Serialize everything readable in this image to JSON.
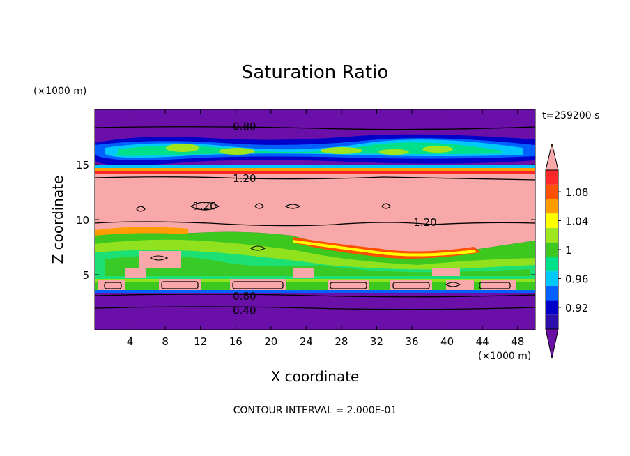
{
  "chart_data": {
    "type": "heatmap",
    "title": "Saturation Ratio",
    "xlabel": "X coordinate",
    "ylabel": "Z coordinate",
    "x_unit": "(×1000 m)",
    "y_unit": "(×1000 m)",
    "time_label": "t=259200 s",
    "footer": "CONTOUR INTERVAL = 2.000E-01",
    "xlim": [
      0,
      50
    ],
    "ylim": [
      0,
      20
    ],
    "x_ticks": [
      4,
      8,
      12,
      16,
      20,
      24,
      28,
      32,
      36,
      40,
      44,
      48
    ],
    "y_ticks": [
      5,
      10,
      15
    ],
    "colorbar": {
      "tick_labels": [
        "0.92",
        "0.96",
        "1",
        "1.04",
        "1.08"
      ],
      "levels": [
        0.9,
        0.92,
        0.94,
        0.96,
        0.98,
        1.0,
        1.02,
        1.04,
        1.06,
        1.08,
        1.1
      ],
      "colors": [
        "#6a0fa8",
        "#2b0fa8",
        "#0000c8",
        "#0060ff",
        "#00c8ff",
        "#00e08a",
        "#3cc81e",
        "#a0e61e",
        "#ffff00",
        "#ff9c00",
        "#ff5000",
        "#ff2828",
        "#f8a8a8"
      ]
    },
    "contour_labels": [
      {
        "text": "0.80",
        "x": 17,
        "z": 18.5
      },
      {
        "text": "1.20",
        "x": 17,
        "z": 13.8
      },
      {
        "text": "1.20",
        "x": 12.5,
        "z": 11.3
      },
      {
        "text": "1.20",
        "x": 37.5,
        "z": 9.8
      },
      {
        "text": "0.80",
        "x": 17,
        "z": 3.1
      },
      {
        "text": "0.40",
        "x": 17,
        "z": 1.8
      }
    ],
    "bands": [
      {
        "z0": 0,
        "z1": 3.3,
        "value": 0.5
      },
      {
        "z0": 3.3,
        "z1": 4.0,
        "value": 1.2
      },
      {
        "z0": 4.0,
        "z1": 8.5,
        "value": 1.0
      },
      {
        "z0": 8.5,
        "z1": 14.3,
        "value": 1.2
      },
      {
        "z0": 14.3,
        "z1": 15.0,
        "value": 1.05
      },
      {
        "z0": 15.0,
        "z1": 17.5,
        "value": 0.95
      },
      {
        "z0": 17.5,
        "z1": 20,
        "value": 0.6
      }
    ]
  }
}
